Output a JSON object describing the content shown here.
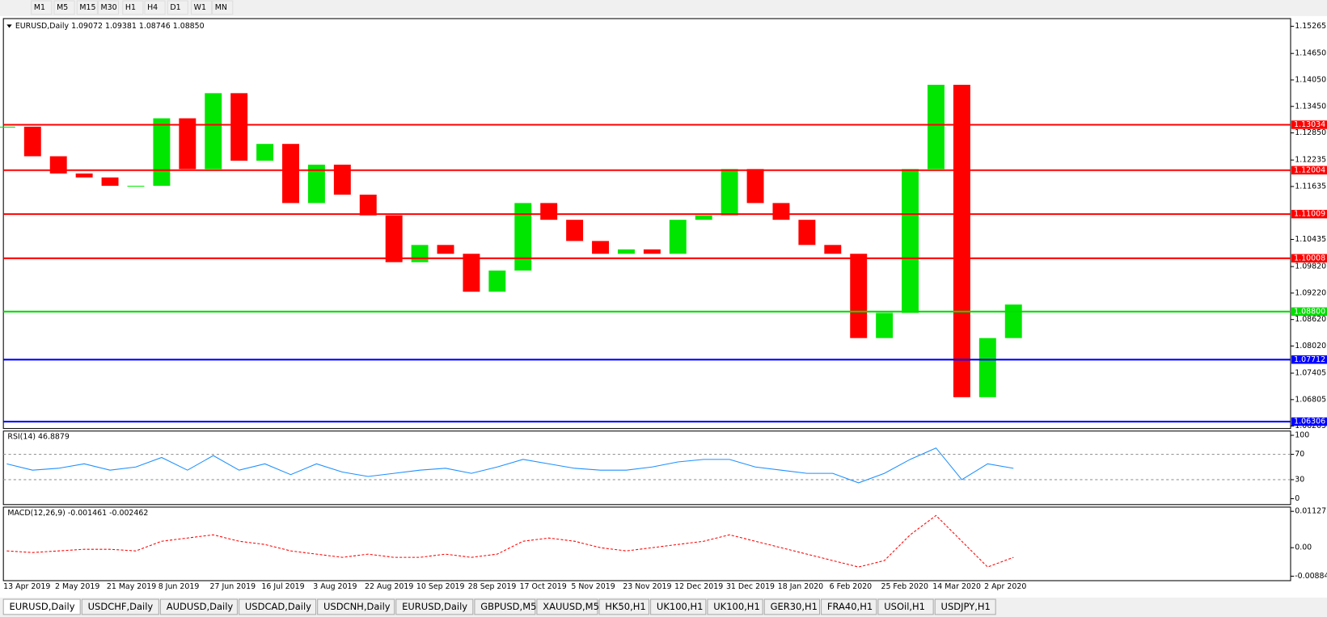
{
  "toolbar": [
    "M1",
    "M5",
    "M15",
    "M30",
    "H1",
    "H4",
    "D1",
    "W1",
    "MN"
  ],
  "tabs": [
    "EURUSD,Daily",
    "USDCHF,Daily",
    "AUDUSD,Daily",
    "USDCAD,Daily",
    "USDCNH,Daily",
    "EURUSD,Daily",
    "GBPUSD,M5",
    "XAUUSD,M5",
    "HK50,H1",
    "UK100,H1",
    "UK100,H1",
    "GER30,H1",
    "FRA40,H1",
    "USOil,H1",
    "USDJPY,H1"
  ],
  "chart_data": [
    {
      "type": "candlestick",
      "title": "EURUSD,Daily  1.09072 1.09381 1.08746 1.08850",
      "categories": [
        "13 Apr 2019",
        null,
        "2 May 2019",
        null,
        "21 May 2019",
        null,
        "8 Jun 2019",
        null,
        "27 Jun 2019",
        null,
        "16 Jul 2019",
        null,
        "3 Aug 2019",
        null,
        "22 Aug 2019",
        null,
        "10 Sep 2019",
        null,
        "28 Sep 2019",
        null,
        "17 Oct 2019",
        null,
        "5 Nov 2019",
        null,
        "23 Nov 2019",
        null,
        "12 Dec 2019",
        null,
        "31 Dec 2019",
        null,
        "18 Jan 2020",
        null,
        "6 Feb 2020",
        null,
        "25 Feb 2020",
        null,
        "14 Mar 2020",
        null,
        "2 Apr 2020",
        null
      ],
      "values": [
        1.1299,
        1.1232,
        1.1193,
        1.1184,
        1.1165,
        1.1165,
        1.1318,
        1.1203,
        1.1375,
        1.1222,
        1.126,
        1.1126,
        1.1213,
        1.1145,
        1.1098,
        1.0992,
        1.1031,
        1.1011,
        1.0925,
        1.0973,
        1.1126,
        1.1088,
        1.104,
        1.1011,
        1.1021,
        1.1011,
        1.1088,
        1.1098,
        1.1203,
        1.1126,
        1.1088,
        1.1031,
        1.1011,
        1.082,
        1.0877,
        1.1203,
        1.1394,
        1.0686,
        1.082,
        1.0896
      ],
      "up_color": "#00e600",
      "down_color": "#ff0000",
      "ylim": [
        1.0615,
        1.1544
      ],
      "yticks": [
        1.15265,
        {
          "value": 1.1465,
          "label": "1.14650"
        },
        {
          "value": 1.1405,
          "label": "1.14050"
        },
        {
          "value": 1.1345,
          "label": "1.13450"
        },
        {
          "value": 1.1285,
          "label": "1.12850"
        },
        1.12235,
        1.11635,
        1.10435,
        {
          "value": 1.0982,
          "label": "1.09820"
        },
        {
          "value": 1.0922,
          "label": "1.09220"
        },
        {
          "value": 1.0862,
          "label": "1.08620"
        },
        {
          "value": 1.0802,
          "label": "1.08020"
        },
        1.07405,
        1.06805,
        1.06205
      ],
      "levels": [
        {
          "value": 1.13034,
          "color": "#ff0000"
        },
        {
          "value": 1.12004,
          "color": "#ff0000"
        },
        {
          "value": 1.11009,
          "color": "#ff0000"
        },
        {
          "value": 1.10008,
          "color": "#ff0000"
        },
        {
          "value": 1.088,
          "label": "1.08800",
          "color": "#00dd00"
        },
        {
          "value": 1.07712,
          "color": "#0000ff"
        },
        {
          "value": 1.06306,
          "color": "#0000ff"
        }
      ]
    },
    {
      "type": "line",
      "title": "RSI(14) 46.8879",
      "values": [
        55,
        45,
        48,
        55,
        45,
        50,
        65,
        45,
        68,
        45,
        55,
        38,
        55,
        42,
        35,
        40,
        45,
        48,
        40,
        50,
        62,
        55,
        48,
        45,
        45,
        50,
        58,
        62,
        62,
        50,
        45,
        40,
        40,
        25,
        40,
        62,
        80,
        30,
        55,
        48
      ],
      "color": "#1e90ff",
      "ylim": [
        -9.3,
        106.7
      ],
      "yticks": [
        0,
        30,
        70,
        100
      ],
      "dashed_levels": [
        30,
        70
      ]
    },
    {
      "type": "line",
      "title": "MACD(12,26,9) -0.001461 -0.002462",
      "values": [
        -0.001,
        -0.0015,
        -0.001,
        -0.0005,
        -0.0005,
        -0.001,
        0.002,
        0.003,
        0.004,
        0.002,
        0.001,
        -0.001,
        -0.002,
        -0.003,
        -0.002,
        -0.003,
        -0.003,
        -0.002,
        -0.003,
        -0.002,
        0.002,
        0.003,
        0.002,
        0,
        -0.001,
        0,
        0.001,
        0.002,
        0.004,
        0.002,
        0,
        -0.002,
        -0.004,
        -0.006,
        -0.004,
        0.004,
        0.01,
        0.002,
        -0.006,
        -0.003
      ],
      "color": "#ff0000",
      "dashed": true,
      "ylim": [
        -0.01023,
        0.01259
      ],
      "yticks": [
        -0.008845,
        {
          "value": 0,
          "label": "0.00"
        },
        0.011277
      ]
    }
  ]
}
